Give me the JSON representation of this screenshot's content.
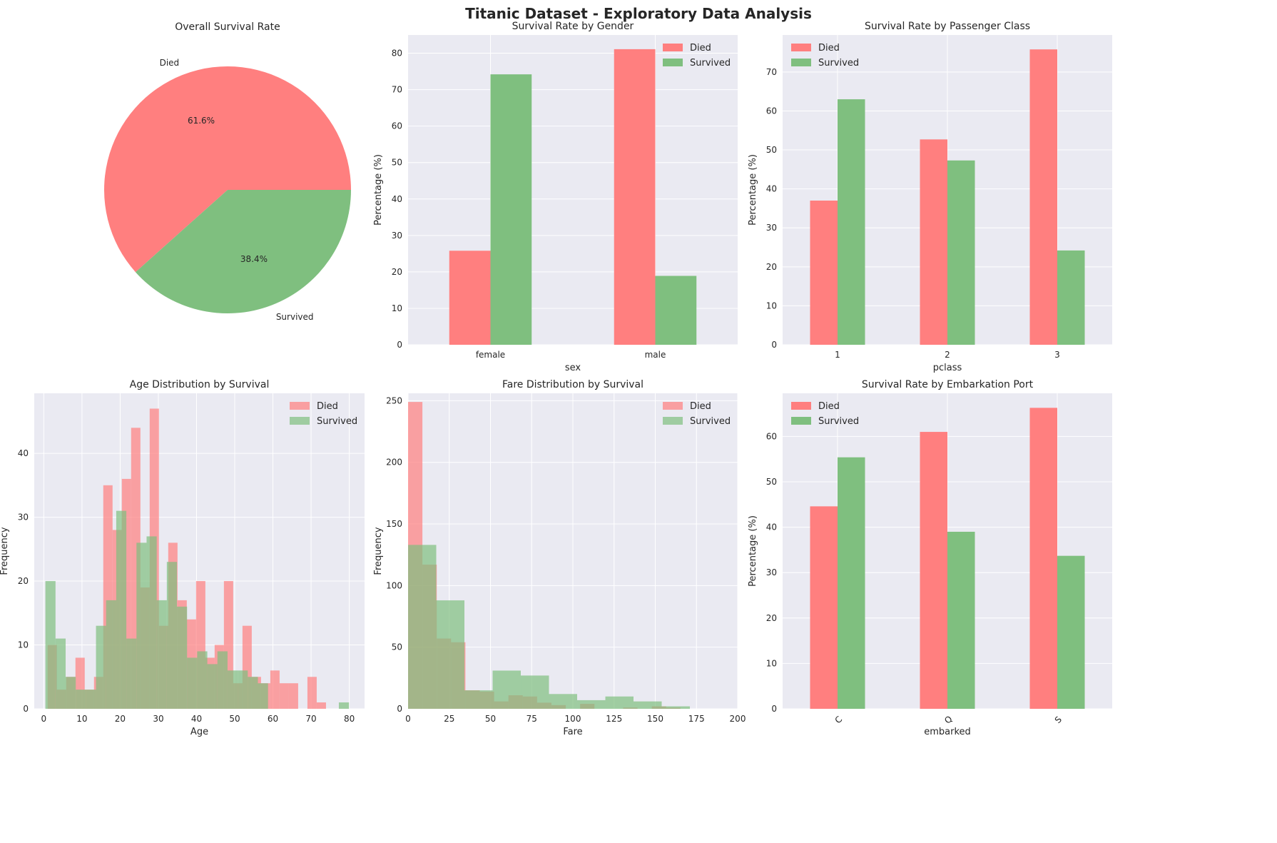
{
  "suptitle": "Titanic Dataset - Exploratory Data Analysis",
  "colors": {
    "died": "#ff7f7f",
    "survived": "#7fbf7f",
    "panel_bg": "#eaeaf2",
    "grid": "#ffffff"
  },
  "chart_data": [
    {
      "type": "pie",
      "title": "Overall Survival Rate",
      "labels": [
        "Died",
        "Survived"
      ],
      "values": [
        61.6,
        38.4
      ],
      "pct_labels": [
        "61.6%",
        "38.4%"
      ]
    },
    {
      "type": "bar",
      "title": "Survival Rate by Gender",
      "xlabel": "sex",
      "ylabel": "Percentage (%)",
      "categories": [
        "female",
        "male"
      ],
      "ylim": [
        0,
        85
      ],
      "yticks": [
        0,
        10,
        20,
        30,
        40,
        50,
        60,
        70,
        80
      ],
      "legend": "top-right",
      "series": [
        {
          "name": "Died",
          "values": [
            25.8,
            81.1
          ]
        },
        {
          "name": "Survived",
          "values": [
            74.2,
            18.9
          ]
        }
      ]
    },
    {
      "type": "bar",
      "title": "Survival Rate by Passenger Class",
      "xlabel": "pclass",
      "ylabel": "Percentage (%)",
      "categories": [
        "1",
        "2",
        "3"
      ],
      "ylim": [
        0,
        79.5
      ],
      "yticks": [
        0,
        10,
        20,
        30,
        40,
        50,
        60,
        70
      ],
      "legend": "top-left",
      "series": [
        {
          "name": "Died",
          "values": [
            37.0,
            52.7,
            75.8
          ]
        },
        {
          "name": "Survived",
          "values": [
            63.0,
            47.3,
            24.2
          ]
        }
      ]
    },
    {
      "type": "histogram",
      "title": "Age Distribution by Survival",
      "xlabel": "Age",
      "ylabel": "Frequency",
      "xlim": [
        -2.5,
        84
      ],
      "ylim": [
        0,
        49.4
      ],
      "xticks": [
        0,
        10,
        20,
        30,
        40,
        50,
        60,
        70,
        80
      ],
      "yticks": [
        0,
        10,
        20,
        30,
        40
      ],
      "legend": "top-right",
      "series": [
        {
          "name": "Died",
          "edges_start": 1,
          "bin_width": 2.43,
          "counts": [
            10,
            3,
            5,
            8,
            3,
            5,
            35,
            28,
            36,
            44,
            19,
            47,
            13,
            26,
            17,
            14,
            20,
            8,
            10,
            20,
            4,
            13,
            5,
            4,
            6,
            4,
            4,
            0,
            5,
            1
          ]
        },
        {
          "name": "Survived",
          "edges_start": 0.42,
          "bin_width": 2.65,
          "counts": [
            20,
            11,
            5,
            3,
            3,
            13,
            17,
            31,
            11,
            26,
            27,
            17,
            23,
            16,
            8,
            9,
            7,
            9,
            6,
            6,
            5,
            4,
            0,
            0,
            0,
            0,
            0,
            0,
            0,
            1
          ]
        }
      ]
    },
    {
      "type": "histogram",
      "title": "Fare Distribution by Survival",
      "xlabel": "Fare",
      "ylabel": "Frequency",
      "xlim": [
        0,
        200
      ],
      "ylim": [
        0,
        256
      ],
      "xticks": [
        0,
        25,
        50,
        75,
        100,
        125,
        150,
        175,
        200
      ],
      "yticks": [
        0,
        50,
        100,
        150,
        200,
        250
      ],
      "legend": "top-right",
      "series": [
        {
          "name": "Died",
          "edges_start": 0,
          "bin_width": 8.7,
          "counts": [
            249,
            117,
            57,
            54,
            15,
            14,
            6,
            11,
            10,
            5,
            3,
            0,
            4,
            0,
            0,
            1,
            0,
            2,
            1,
            0
          ]
        },
        {
          "name": "Survived",
          "edges_start": 0,
          "bin_width": 17.1,
          "counts": [
            133,
            88,
            15,
            31,
            27,
            12,
            7,
            10,
            6,
            2
          ]
        }
      ]
    },
    {
      "type": "bar",
      "title": "Survival Rate by Embarkation Port",
      "xlabel": "embarked",
      "ylabel": "Percentage (%)",
      "categories": [
        "C",
        "Q",
        "S"
      ],
      "ylim": [
        0,
        69.5
      ],
      "yticks": [
        0,
        10,
        20,
        30,
        40,
        50,
        60
      ],
      "legend": "top-left",
      "rotate_xticks": true,
      "series": [
        {
          "name": "Died",
          "values": [
            44.6,
            61.0,
            66.3
          ]
        },
        {
          "name": "Survived",
          "values": [
            55.4,
            39.0,
            33.7
          ]
        }
      ]
    }
  ]
}
